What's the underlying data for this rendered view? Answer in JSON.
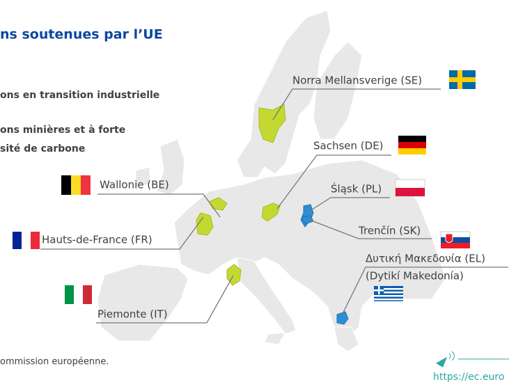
{
  "header": {
    "title": "ns soutenues par l’UE"
  },
  "legend": [
    {
      "lines": [
        "ons en transition industrielle"
      ]
    },
    {
      "lines": [
        "ons minières et à forte",
        "sité de carbone"
      ]
    }
  ],
  "regions": [
    {
      "label": "Norra Mellansverige (SE)"
    },
    {
      "label": "Sachsen (DE)"
    },
    {
      "label": "Śląsk (PL)"
    },
    {
      "label": "Trenčín (SK)"
    },
    {
      "label": "Δυτική Μακεδονία (EL)",
      "transliteration": "(Dytikí Makedonía)"
    },
    {
      "label": "Wallonie (BE)"
    },
    {
      "label": "Hauts-de-France (FR)"
    },
    {
      "label": "Piemonte (IT)"
    }
  ],
  "source": "ommission européenne.",
  "url": "https://ec.euro"
}
